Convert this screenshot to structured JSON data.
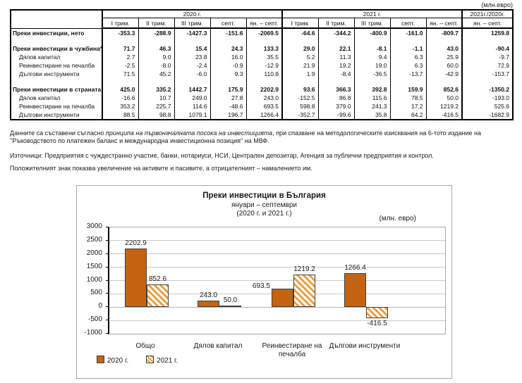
{
  "unit_note": "(млн.евро)",
  "table": {
    "year_groups": [
      "2020 г.",
      "2021 г."
    ],
    "ratio_header": "2021г./2020г.",
    "quarter_headers": [
      "I трим.",
      "II трим.",
      "III трим.",
      "септ.",
      "ян. – септ."
    ],
    "ratio_subheader": "ян. – септ.",
    "rows": [
      {
        "label": "Преки инвестиции, нето",
        "bold": true,
        "values": [
          "-353.3",
          "-288.9",
          "-1427.3",
          "-151.6",
          "-2069.5",
          "-64.6",
          "-344.2",
          "-400.9",
          "-161.0",
          "-809.7",
          "1259.8"
        ]
      },
      {
        "spacer": true
      },
      {
        "label": "Преки инвестиции в чужбина*",
        "bold": true,
        "values": [
          "71.7",
          "46.3",
          "15.4",
          "24.3",
          "133.3",
          "29.0",
          "22.1",
          "-8.1",
          "-1.1",
          "43.0",
          "-90.4"
        ]
      },
      {
        "label": "Дялов капитал",
        "indent": true,
        "values": [
          "2.7",
          "9.0",
          "23.8",
          "16.0",
          "35.5",
          "5.2",
          "11.3",
          "9.4",
          "6.3",
          "25.9",
          "-9.7"
        ]
      },
      {
        "label": "Реинвестиране на печалба",
        "indent": true,
        "values": [
          "-2.5",
          "-8.0",
          "-2.4",
          "-0.9",
          "-12.9",
          "21.9",
          "19.2",
          "19.0",
          "6.3",
          "60.0",
          "72.9"
        ]
      },
      {
        "label": "Дългови инструменти",
        "indent": true,
        "values": [
          "71.5",
          "45.2",
          "-6.0",
          "9.3",
          "110.8",
          "1.9",
          "-8.4",
          "-36.5",
          "-13.7",
          "-42.9",
          "-153.7"
        ]
      },
      {
        "spacer": true
      },
      {
        "label": "Преки инвестиции в страната",
        "bold": true,
        "values": [
          "425.0",
          "335.2",
          "1442.7",
          "175.9",
          "2202.9",
          "93.6",
          "366.3",
          "392.8",
          "159.9",
          "852.6",
          "-1350.2"
        ]
      },
      {
        "label": "Дялов капитал",
        "indent": true,
        "values": [
          "-16.6",
          "10.7",
          "249.0",
          "27.8",
          "243.0",
          "-152.5",
          "86.8",
          "115.6",
          "78.5",
          "50.0",
          "-193.0"
        ]
      },
      {
        "label": "Реинвестиране на печалба",
        "indent": true,
        "values": [
          "353.2",
          "225.7",
          "114.6",
          "-48.6",
          "693.5",
          "598.8",
          "379.0",
          "241.3",
          "17.2",
          "1219.2",
          "525.6"
        ]
      },
      {
        "label": "Дългови инструменти",
        "indent": true,
        "values": [
          "88.5",
          "98.8",
          "1079.1",
          "196.7",
          "1266.4",
          "-352.7",
          "-99.6",
          "35.8",
          "64.2",
          "-416.5",
          "-1682.9"
        ]
      }
    ]
  },
  "notes": {
    "note1_pre": "Данните са съставени съгласно ",
    "note1_italic": "принципа на първоначалната посока на инвестицията",
    "note1_post": ", при спазване на методологическите изисквания на 6-тото издание на \"Ръководството по платежен баланс и международна инвестиционна позиция\" на МВФ.",
    "note2": "Източници: Предприятия с чуждестранно участие, банки, нотариуси, НСИ, Централен депозитар, Агенция за публични предприятия и контрол.",
    "note3": "Положителният знак показва увеличение на активите и пасивите, а отрицателният – намалението им."
  },
  "chart_data": {
    "type": "bar",
    "title": "Преки  инвестиции в България",
    "subtitle1": "януари – септември",
    "subtitle2": "(2020 г. и 2021 г.)",
    "unit": "(млн. евро)",
    "categories": [
      "Общо",
      "Дялов капитал",
      "Реинвестиране на печалба",
      "Дългови инструменти"
    ],
    "series": [
      {
        "name": "2020 г.",
        "style": "solid",
        "color": "#C46311",
        "values": [
          2202.9,
          243.0,
          693.5,
          1266.4
        ]
      },
      {
        "name": "2021 г.",
        "style": "hatched",
        "color": "#E89C40",
        "values": [
          852.6,
          50.0,
          1219.2,
          -416.5
        ]
      }
    ],
    "label_pos": [
      [
        "above",
        "above",
        "left",
        "above"
      ],
      [
        "above",
        "above",
        "above",
        "below"
      ]
    ],
    "ylim": [
      -1000,
      3000
    ],
    "yticks": [
      -1000,
      -500,
      0,
      500,
      1000,
      1500,
      2000,
      2500,
      3000
    ],
    "grid": true,
    "legend_position": "bottom-left"
  }
}
